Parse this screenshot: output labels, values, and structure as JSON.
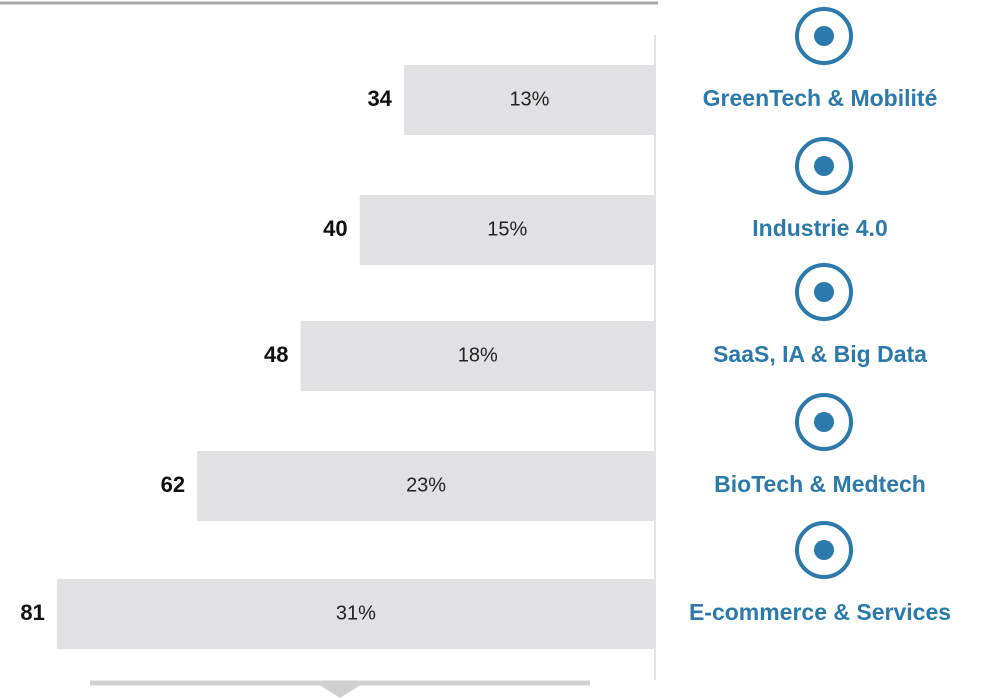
{
  "chart_data": {
    "type": "bar",
    "orientation": "horizontal",
    "x_reversed": true,
    "categories": [
      "GreenTech & Mobilité",
      "Industrie 4.0",
      "SaaS, IA & Big Data",
      "BioTech & Medtech",
      "E-commerce & Services"
    ],
    "values": [
      34,
      40,
      48,
      62,
      81
    ],
    "shares": {
      "values": [
        13,
        15,
        18,
        23,
        31
      ],
      "value_labels": [
        "13%",
        "15%",
        "18%",
        "23%",
        "31%"
      ]
    },
    "color": "#e1e1e4",
    "label_color": "#2b7aab",
    "xlim": [
      0,
      88.7
    ]
  }
}
